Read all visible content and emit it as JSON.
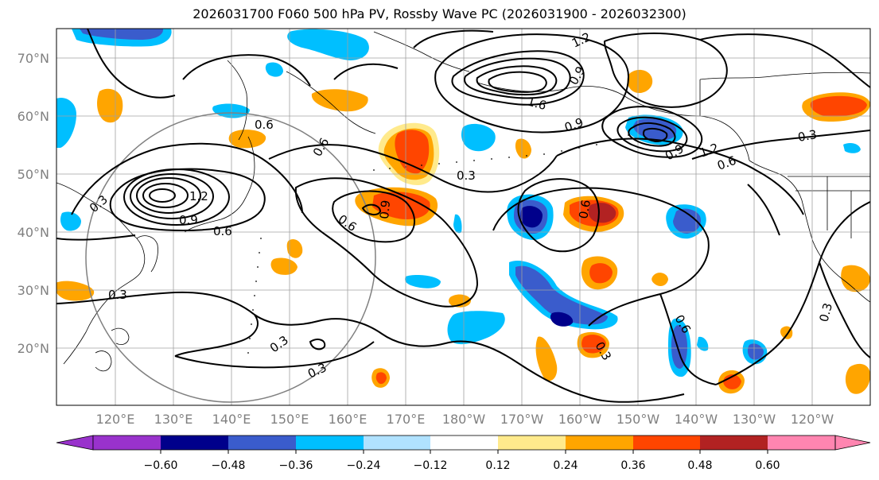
{
  "title": "2026031700 F060 500 hPa PV, Rossby Wave PC (2026031900 - 2026032300)",
  "lat_labels": [
    "70°N",
    "60°N",
    "50°N",
    "40°N",
    "30°N",
    "20°N"
  ],
  "lon_labels": [
    "120°E",
    "130°E",
    "140°E",
    "150°E",
    "160°E",
    "170°E",
    "180°W",
    "170°W",
    "160°W",
    "150°W",
    "140°W",
    "130°W",
    "120°W"
  ],
  "contour_labels": [
    "0.3",
    "0.6",
    "0.9",
    "1.2",
    "1.6"
  ],
  "colorbar": {
    "ticks": [
      "−0.60",
      "−0.48",
      "−0.36",
      "−0.24",
      "−0.12",
      "0.12",
      "0.24",
      "0.36",
      "0.48",
      "0.60"
    ],
    "colors": [
      "#9932cc",
      "#00008b",
      "#3a5ccc",
      "#00bfff",
      "#b0e2ff",
      "#ffffff",
      "#ffea8c",
      "#ffa500",
      "#ff4500",
      "#b22222",
      "#ff85b0"
    ]
  }
}
